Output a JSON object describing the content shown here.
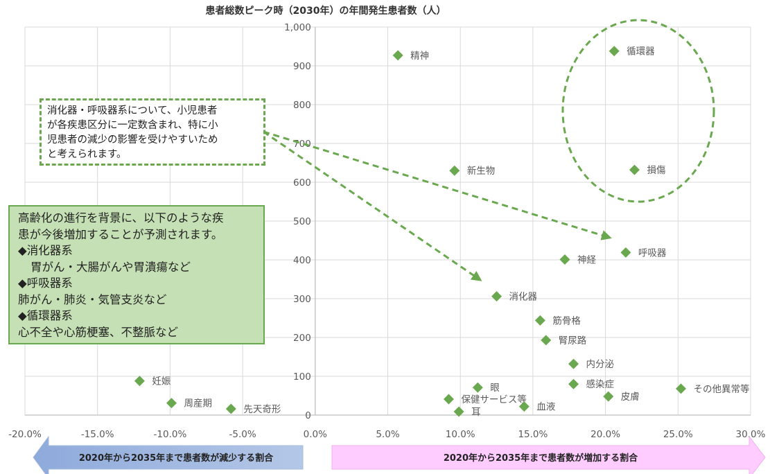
{
  "chart_data": {
    "type": "scatter",
    "title": "患者総数ピーク時（2030年）の年間発生患者数（人）",
    "xlim": [
      -0.2,
      0.3
    ],
    "ylim": [
      0,
      1000
    ],
    "x_ticks": [
      -0.2,
      -0.15,
      -0.1,
      -0.05,
      0.0,
      0.05,
      0.1,
      0.15,
      0.2,
      0.25,
      0.3
    ],
    "x_tick_labels": [
      "-20.0%",
      "-15.0%",
      "-10.0%",
      "-5.0%",
      "0.0%",
      "5.0%",
      "10.0%",
      "15.0%",
      "20.0%",
      "25.0%",
      "30.0%"
    ],
    "y_ticks": [
      0,
      100,
      200,
      300,
      400,
      500,
      600,
      700,
      800,
      900,
      1000
    ],
    "y_tick_labels": [
      "0",
      "100",
      "200",
      "300",
      "400",
      "500",
      "600",
      "700",
      "800",
      "900",
      "1,000"
    ],
    "grid": true,
    "marker_color": "#6aa84f",
    "points": [
      {
        "label": "精神",
        "x": 0.057,
        "y": 927
      },
      {
        "label": "循環器",
        "x": 0.206,
        "y": 938
      },
      {
        "label": "新生物",
        "x": 0.096,
        "y": 630
      },
      {
        "label": "損傷",
        "x": 0.22,
        "y": 632
      },
      {
        "label": "呼吸器",
        "x": 0.214,
        "y": 419
      },
      {
        "label": "神経",
        "x": 0.172,
        "y": 401
      },
      {
        "label": "消化器",
        "x": 0.125,
        "y": 306
      },
      {
        "label": "筋骨格",
        "x": 0.155,
        "y": 244
      },
      {
        "label": "腎尿路",
        "x": 0.159,
        "y": 193
      },
      {
        "label": "内分泌",
        "x": 0.178,
        "y": 132
      },
      {
        "label": "感染症",
        "x": 0.178,
        "y": 80
      },
      {
        "label": "皮膚",
        "x": 0.202,
        "y": 48
      },
      {
        "label": "その他異常等",
        "x": 0.252,
        "y": 68
      },
      {
        "label": "眼",
        "x": 0.112,
        "y": 71
      },
      {
        "label": "保健サービス等",
        "x": 0.092,
        "y": 41
      },
      {
        "label": "耳",
        "x": 0.099,
        "y": 9
      },
      {
        "label": "血液",
        "x": 0.144,
        "y": 22
      },
      {
        "label": "妊娠",
        "x": -0.121,
        "y": 88
      },
      {
        "label": "周産期",
        "x": -0.099,
        "y": 31
      },
      {
        "label": "先天奇形",
        "x": -0.058,
        "y": 16
      }
    ],
    "annotations": {
      "decrease_label": "2020年から2035年まで患者数が減少する割合",
      "increase_label": "2020年から2035年まで患者数が増加する割合"
    }
  },
  "notes": {
    "pediatric": [
      "消化器・呼吸器系について、小児患者",
      "が各疾患区分に一定数含まれ、特に小",
      "児患者の減少の影響を受けやすいため",
      "と考えられます。"
    ],
    "elderly": [
      "高齢化の進行を背景に、以下のような疾",
      "患が今後増加することが予測されます。",
      "◆消化器系",
      "胃がん・大腸がんや胃潰瘍など",
      "◆呼吸器系",
      "肺がん・肺炎・気管支炎など",
      "◆循環器系",
      "心不全や心筋梗塞、不整脈など"
    ]
  }
}
